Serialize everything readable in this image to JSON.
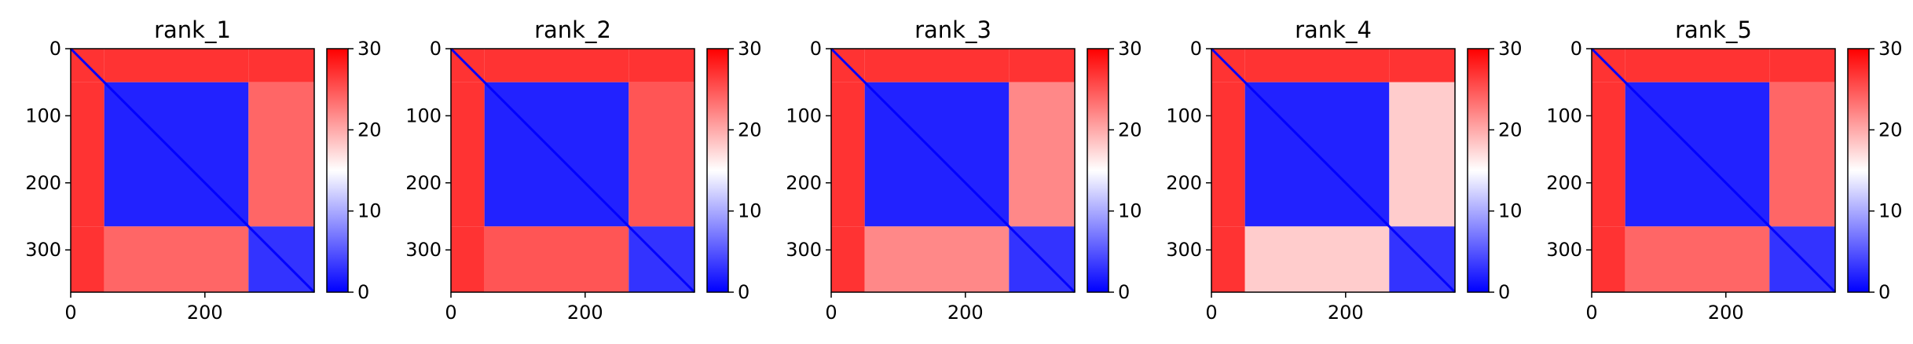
{
  "chart_data": [
    {
      "type": "heatmap",
      "title": "rank_1",
      "n_residues": 363,
      "domain_boundaries": [
        50,
        265
      ],
      "xlim": [
        0,
        363
      ],
      "ylim": [
        363,
        0
      ],
      "xticks": [
        0,
        200
      ],
      "yticks": [
        0,
        100,
        200,
        300
      ],
      "colorbar": {
        "range": [
          0,
          30
        ],
        "ticks": [
          0,
          10,
          20,
          30
        ],
        "colormap": "bwr"
      },
      "block_values": {
        "n_terminal_tail": 27,
        "domain1_self": 2,
        "domain2_self": 3,
        "domain1_domain2": 24
      }
    },
    {
      "type": "heatmap",
      "title": "rank_2",
      "n_residues": 363,
      "domain_boundaries": [
        50,
        265
      ],
      "xlim": [
        0,
        363
      ],
      "ylim": [
        363,
        0
      ],
      "xticks": [
        0,
        200
      ],
      "yticks": [
        0,
        100,
        200,
        300
      ],
      "colorbar": {
        "range": [
          0,
          30
        ],
        "ticks": [
          0,
          10,
          20,
          30
        ],
        "colormap": "bwr"
      },
      "block_values": {
        "n_terminal_tail": 27,
        "domain1_self": 2,
        "domain2_self": 3,
        "domain1_domain2": 25
      }
    },
    {
      "type": "heatmap",
      "title": "rank_3",
      "n_residues": 363,
      "domain_boundaries": [
        50,
        265
      ],
      "xlim": [
        0,
        363
      ],
      "ylim": [
        363,
        0
      ],
      "xticks": [
        0,
        200
      ],
      "yticks": [
        0,
        100,
        200,
        300
      ],
      "colorbar": {
        "range": [
          0,
          30
        ],
        "ticks": [
          0,
          10,
          20,
          30
        ],
        "colormap": "bwr"
      },
      "block_values": {
        "n_terminal_tail": 27,
        "domain1_self": 2,
        "domain2_self": 3,
        "domain1_domain2": 22
      }
    },
    {
      "type": "heatmap",
      "title": "rank_4",
      "n_residues": 363,
      "domain_boundaries": [
        50,
        265
      ],
      "xlim": [
        0,
        363
      ],
      "ylim": [
        363,
        0
      ],
      "xticks": [
        0,
        200
      ],
      "yticks": [
        0,
        100,
        200,
        300
      ],
      "colorbar": {
        "range": [
          0,
          30
        ],
        "ticks": [
          0,
          10,
          20,
          30
        ],
        "colormap": "bwr"
      },
      "block_values": {
        "n_terminal_tail": 27,
        "domain1_self": 2,
        "domain2_self": 3,
        "domain1_domain2": 18
      }
    },
    {
      "type": "heatmap",
      "title": "rank_5",
      "n_residues": 363,
      "domain_boundaries": [
        50,
        265
      ],
      "xlim": [
        0,
        363
      ],
      "ylim": [
        363,
        0
      ],
      "xticks": [
        0,
        200
      ],
      "yticks": [
        0,
        100,
        200,
        300
      ],
      "colorbar": {
        "range": [
          0,
          30
        ],
        "ticks": [
          0,
          10,
          20,
          30
        ],
        "colormap": "bwr"
      },
      "block_values": {
        "n_terminal_tail": 27,
        "domain1_self": 2,
        "domain2_self": 3,
        "domain1_domain2": 24
      }
    }
  ]
}
